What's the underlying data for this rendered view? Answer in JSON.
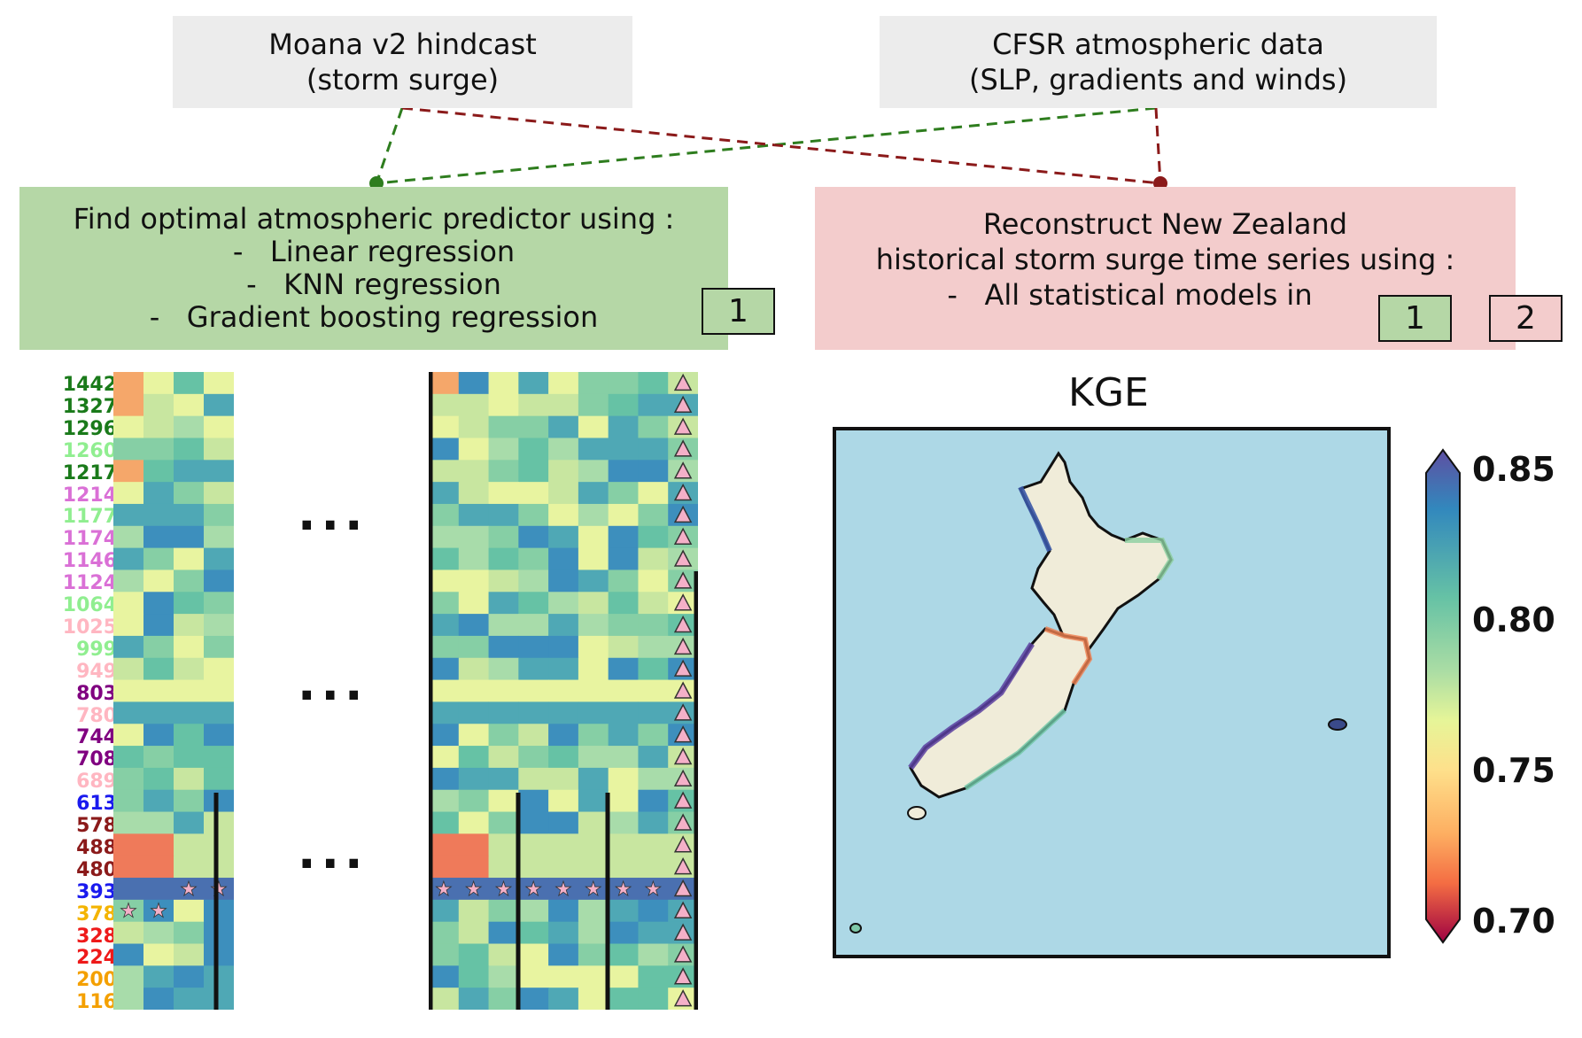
{
  "boxes": {
    "moana": {
      "line1": "Moana v2 hindcast",
      "line2": "(storm surge)"
    },
    "cfsr": {
      "line1": "CFSR atmospheric data",
      "line2": "(SLP, gradients and winds)"
    },
    "predictor": {
      "title": "Find optimal atmospheric predictor using :",
      "items": [
        "-   Linear regression",
        "-   KNN regression",
        "-   Gradient boosting regression"
      ],
      "badge": "1"
    },
    "reconstruct": {
      "line1": "Reconstruct New Zealand",
      "line2": "historical storm surge time series using :",
      "line3": "-   All statistical models in",
      "badge1": "1",
      "badge2": "2"
    }
  },
  "colors": {
    "green_box": "#b5d7a6",
    "pink_box": "#f3cccc",
    "grey_box": "#ececec",
    "green_line": "#2e7d1e",
    "red_line": "#8b1a1a"
  },
  "ellipsis": "...",
  "station_labels": [
    {
      "text": "1442",
      "color": "#1a7a1a"
    },
    {
      "text": "1327",
      "color": "#1a7a1a"
    },
    {
      "text": "1296",
      "color": "#1a7a1a"
    },
    {
      "text": "1260",
      "color": "#90ee90"
    },
    {
      "text": "1217",
      "color": "#1a7a1a"
    },
    {
      "text": "1214",
      "color": "#da70d6"
    },
    {
      "text": "1177",
      "color": "#90ee90"
    },
    {
      "text": "1174",
      "color": "#da70d6"
    },
    {
      "text": "1146",
      "color": "#da70d6"
    },
    {
      "text": "1124",
      "color": "#da70d6"
    },
    {
      "text": "1064",
      "color": "#90ee90"
    },
    {
      "text": "1025",
      "color": "#ffb6c1"
    },
    {
      "text": "999",
      "color": "#90ee90"
    },
    {
      "text": "949",
      "color": "#ffb6c1"
    },
    {
      "text": "803",
      "color": "#800080"
    },
    {
      "text": "780",
      "color": "#ffb6c1"
    },
    {
      "text": "744",
      "color": "#800080"
    },
    {
      "text": "708",
      "color": "#800080"
    },
    {
      "text": "689",
      "color": "#ffb6c1"
    },
    {
      "text": "613",
      "color": "#1a1aee"
    },
    {
      "text": "578",
      "color": "#8b1a1a"
    },
    {
      "text": "488",
      "color": "#8b1a1a"
    },
    {
      "text": "480",
      "color": "#8b1a1a"
    },
    {
      "text": "393",
      "color": "#1a1aee"
    },
    {
      "text": "378",
      "color": "#f4b400"
    },
    {
      "text": "328",
      "color": "#ee1a1a"
    },
    {
      "text": "224",
      "color": "#ee1a1a"
    },
    {
      "text": "200",
      "color": "#f4a000"
    },
    {
      "text": "116",
      "color": "#f4a000"
    }
  ],
  "map": {
    "title": "KGE",
    "colorbar_ticks": [
      "0.85",
      "0.80",
      "0.75",
      "0.70"
    ]
  }
}
